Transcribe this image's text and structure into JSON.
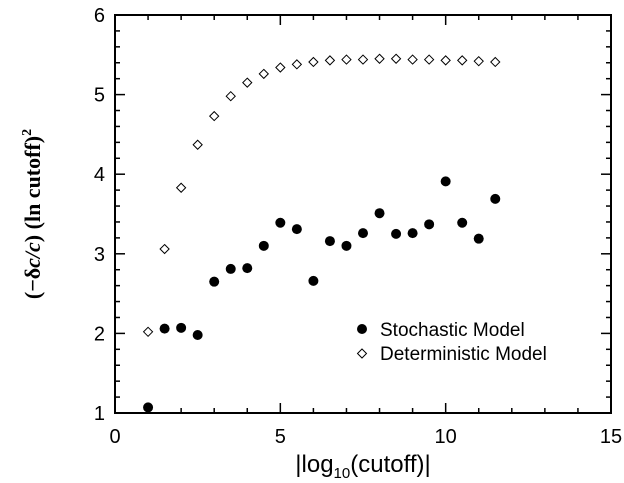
{
  "chart_data": {
    "type": "scatter",
    "xlabel": {
      "prefix": "|log",
      "sub": "10",
      "suffix": "(cutoff)|"
    },
    "ylabel": {
      "part1": "(−δ",
      "italic": "c/c",
      "part2": ")  (ln cutoff)",
      "sup": "2"
    },
    "xlim": [
      0,
      15
    ],
    "ylim": [
      1,
      6
    ],
    "xticks": [
      "0",
      "5",
      "10",
      "15"
    ],
    "yticks": [
      "1",
      "2",
      "3",
      "4",
      "5",
      "6"
    ],
    "grid": false,
    "legend_position": "bottom-right",
    "series": [
      {
        "name": "Stochastic Model",
        "marker": "filled-circle",
        "color": "#000000",
        "x": [
          1,
          1.5,
          2,
          2.5,
          3,
          3.5,
          4,
          4.5,
          5,
          5.5,
          6,
          6.5,
          7,
          7.5,
          8,
          8.5,
          9,
          9.5,
          10,
          10.5,
          11,
          11.5
        ],
        "y": [
          1.07,
          2.06,
          2.07,
          1.98,
          2.65,
          2.81,
          2.82,
          3.1,
          3.39,
          3.31,
          2.66,
          3.16,
          3.1,
          3.26,
          3.51,
          3.25,
          3.26,
          3.37,
          3.91,
          3.39,
          3.19,
          3.69
        ]
      },
      {
        "name": "Deterministic Model",
        "marker": "open-diamond",
        "color": "#000000",
        "x": [
          1,
          1.5,
          2,
          2.5,
          3,
          3.5,
          4,
          4.5,
          5,
          5.5,
          6,
          6.5,
          7,
          7.5,
          8,
          8.5,
          9,
          9.5,
          10,
          10.5,
          11,
          11.5
        ],
        "y": [
          2.02,
          3.06,
          3.83,
          4.37,
          4.73,
          4.98,
          5.15,
          5.26,
          5.34,
          5.38,
          5.41,
          5.43,
          5.44,
          5.44,
          5.45,
          5.45,
          5.44,
          5.44,
          5.43,
          5.43,
          5.42,
          5.41
        ]
      }
    ]
  }
}
